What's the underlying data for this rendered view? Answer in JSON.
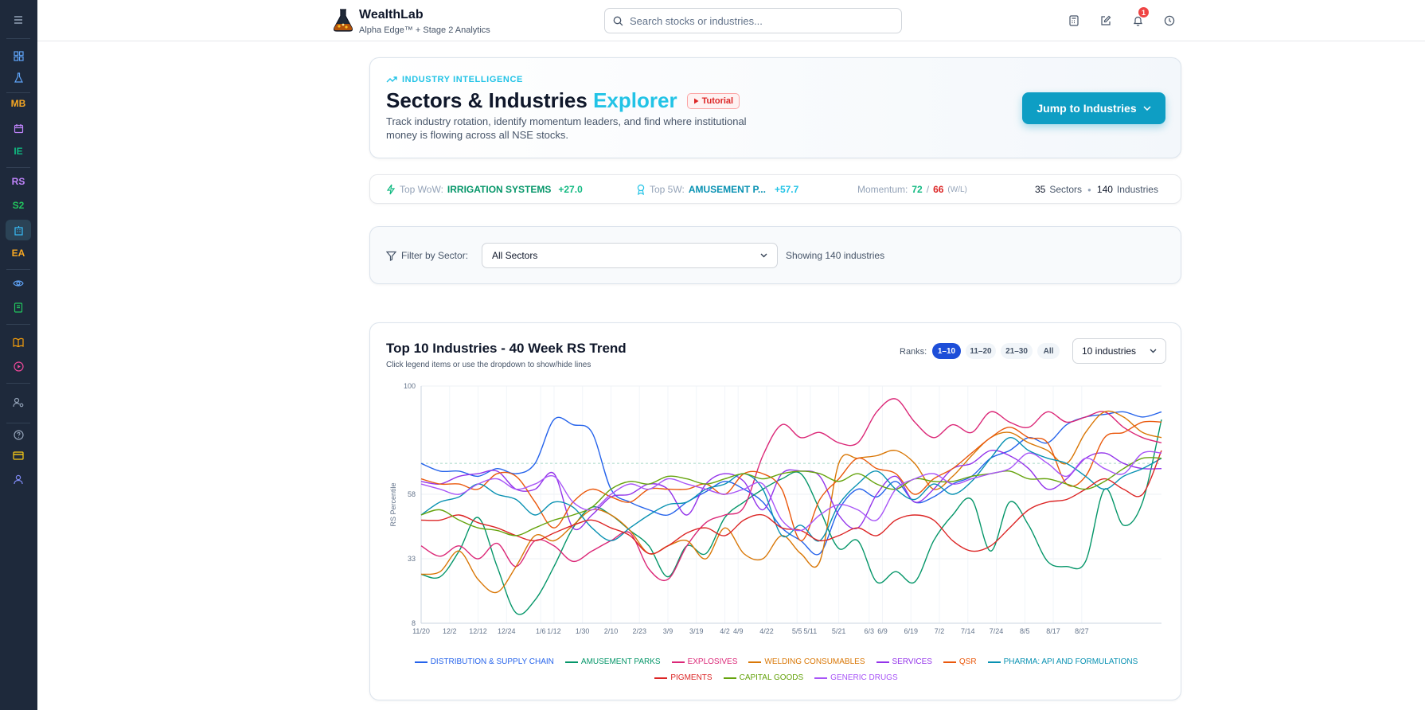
{
  "app": {
    "name": "WealthLab",
    "tagline": "Alpha Edge™ + Stage 2 Analytics"
  },
  "search": {
    "placeholder": "Search stocks or industries..."
  },
  "notifications": {
    "count": "1"
  },
  "sidebar": {
    "items": [
      {
        "name": "menu-icon",
        "label": ""
      },
      {
        "name": "dashboard-icon",
        "label": ""
      },
      {
        "name": "flask-icon",
        "label": ""
      },
      {
        "name": "MB",
        "label": "MB",
        "color": "#f5a623"
      },
      {
        "name": "calendar-icon",
        "label": ""
      },
      {
        "name": "IE",
        "label": "IE",
        "color": "#10b981"
      },
      {
        "name": "RS",
        "label": "RS",
        "color": "#c084fc"
      },
      {
        "name": "S2",
        "label": "S2",
        "color": "#22c55e"
      },
      {
        "name": "building-icon",
        "label": ""
      },
      {
        "name": "EA",
        "label": "EA",
        "color": "#f5a623"
      },
      {
        "name": "eye-icon",
        "label": ""
      },
      {
        "name": "notebook-icon",
        "label": ""
      },
      {
        "name": "book-icon",
        "label": ""
      },
      {
        "name": "play-icon",
        "label": ""
      },
      {
        "name": "user-gear-icon",
        "label": ""
      },
      {
        "name": "help-icon",
        "label": ""
      },
      {
        "name": "card-icon",
        "label": ""
      },
      {
        "name": "user-icon",
        "label": ""
      }
    ]
  },
  "hero": {
    "kicker": "INDUSTRY INTELLIGENCE",
    "title_main": "Sectors & Industries",
    "title_accent": "Explorer",
    "tutorial": "Tutorial",
    "description": "Track industry rotation, identify momentum leaders, and find where institutional money is flowing across all NSE stocks.",
    "jump_button": "Jump to Industries"
  },
  "stats": {
    "top_wow_label": "Top WoW:",
    "top_wow_name": "IRRIGATION SYSTEMS",
    "top_wow_value": "+27.0",
    "top_5w_label": "Top 5W:",
    "top_5w_name": "AMUSEMENT P...",
    "top_5w_value": "+57.7",
    "momentum_label": "Momentum:",
    "momentum_w": "72",
    "momentum_sep": "/",
    "momentum_l": "66",
    "momentum_note": "(W/L)",
    "sectors_count": "35",
    "sectors_label": "Sectors",
    "industries_count": "140",
    "industries_label": "Industries"
  },
  "filter": {
    "label": "Filter by Sector:",
    "selected": "All Sectors",
    "showing": "Showing 140 industries"
  },
  "chart_card": {
    "title": "Top 10 Industries - 40 Week RS Trend",
    "subtitle": "Click legend items or use the dropdown to show/hide lines",
    "ranks_label": "Ranks:",
    "ranks": [
      "1–10",
      "11–20",
      "21–30",
      "All"
    ],
    "active_rank": 0,
    "industries_select": "10 industries"
  },
  "chart_data": {
    "type": "line",
    "ylabel": "RS Percentile",
    "xlabel": "",
    "ylim": [
      8,
      100
    ],
    "yticks": [
      "100",
      "58",
      "33",
      "8"
    ],
    "reference_line": 70,
    "x_ticks": [
      "11/20",
      "12/2",
      "12/12",
      "12/24",
      "1/6",
      "1/12",
      "1/30",
      "2/10",
      "2/23",
      "3/9",
      "3/19",
      "4/2",
      "4/9",
      "4/22",
      "5/5",
      "5/11",
      "5/21",
      "6/3",
      "6/9",
      "6/19",
      "7/2",
      "7/14",
      "7/24",
      "8/5",
      "8/17",
      "8/27"
    ],
    "x_tick_pos": [
      0,
      1.5,
      3,
      4.5,
      6.3,
      7,
      8.5,
      10,
      11.5,
      13,
      14.5,
      16,
      16.7,
      18.2,
      19.8,
      20.5,
      22,
      23.6,
      24.3,
      25.8,
      27.3,
      28.8,
      30.3,
      31.8,
      33.3,
      34.8
    ],
    "series": [
      {
        "name": "DISTRIBUTION & SUPPLY CHAIN",
        "color": "#2563eb",
        "values": [
          70,
          67,
          67,
          65,
          68,
          66,
          70,
          87,
          85,
          82,
          60,
          55,
          52,
          50,
          55,
          59,
          63,
          60,
          55,
          45,
          40,
          35,
          52,
          60,
          57,
          63,
          55,
          57,
          62,
          65,
          72,
          75,
          80,
          78,
          85,
          88,
          89,
          90,
          88,
          90
        ]
      },
      {
        "name": "AMUSEMENT PARKS",
        "color": "#059669",
        "values": [
          27,
          26,
          36,
          49,
          30,
          12,
          17,
          30,
          45,
          53,
          50,
          44,
          38,
          26,
          38,
          35,
          49,
          55,
          60,
          64,
          66,
          52,
          37,
          40,
          24,
          28,
          24,
          40,
          50,
          56,
          36,
          55,
          46,
          32,
          30,
          32,
          60,
          46,
          55,
          87
        ]
      },
      {
        "name": "EXPLOSIVES",
        "color": "#db2777",
        "values": [
          38,
          34,
          38,
          33,
          39,
          30,
          40,
          38,
          32,
          36,
          40,
          43,
          29,
          25,
          38,
          47,
          50,
          53,
          73,
          85,
          80,
          82,
          78,
          78,
          90,
          95,
          86,
          80,
          85,
          82,
          90,
          86,
          84,
          90,
          86,
          88,
          90,
          84,
          80,
          78
        ]
      },
      {
        "name": "WELDING CONSUMABLES",
        "color": "#d97706",
        "values": [
          27,
          28,
          36,
          25,
          20,
          30,
          42,
          40,
          46,
          52,
          50,
          44,
          35,
          38,
          40,
          33,
          45,
          35,
          33,
          42,
          35,
          32,
          70,
          72,
          73,
          75,
          70,
          60,
          65,
          73,
          80,
          82,
          78,
          75,
          70,
          82,
          90,
          88,
          82,
          80
        ]
      },
      {
        "name": "SERVICES",
        "color": "#9333ea",
        "values": [
          63,
          62,
          65,
          66,
          67,
          60,
          60,
          66,
          45,
          50,
          57,
          58,
          62,
          60,
          50,
          62,
          66,
          63,
          52,
          66,
          67,
          65,
          50,
          45,
          58,
          65,
          55,
          60,
          68,
          70,
          75,
          73,
          68,
          60,
          64,
          72,
          74,
          70,
          68,
          68
        ]
      },
      {
        "name": "QSR",
        "color": "#ea580c",
        "values": [
          64,
          62,
          62,
          60,
          66,
          65,
          55,
          45,
          55,
          60,
          57,
          55,
          60,
          60,
          60,
          62,
          58,
          66,
          66,
          60,
          40,
          56,
          64,
          72,
          68,
          66,
          58,
          64,
          68,
          74,
          80,
          84,
          80,
          78,
          62,
          65,
          80,
          82,
          86,
          86
        ]
      },
      {
        "name": "PHARMA: API AND FORMULATIONS",
        "color": "#0891b2",
        "values": [
          50,
          55,
          57,
          62,
          58,
          56,
          50,
          55,
          53,
          45,
          40,
          45,
          50,
          54,
          55,
          60,
          62,
          66,
          60,
          42,
          46,
          40,
          54,
          62,
          67,
          60,
          56,
          62,
          58,
          63,
          72,
          80,
          75,
          72,
          70,
          65,
          60,
          65,
          68,
          72
        ]
      },
      {
        "name": "PIGMENTS",
        "color": "#dc2626",
        "values": [
          48,
          48,
          50,
          47,
          45,
          42,
          40,
          43,
          46,
          48,
          45,
          42,
          35,
          38,
          43,
          45,
          42,
          48,
          50,
          45,
          44,
          40,
          42,
          45,
          42,
          48,
          50,
          48,
          40,
          36,
          38,
          45,
          52,
          55,
          56,
          60,
          64,
          60,
          58,
          75
        ]
      },
      {
        "name": "CAPITAL GOODS",
        "color": "#65a30d",
        "values": [
          50,
          52,
          48,
          45,
          44,
          42,
          45,
          48,
          50,
          53,
          60,
          63,
          62,
          65,
          64,
          62,
          64,
          66,
          64,
          66,
          67,
          66,
          63,
          66,
          62,
          60,
          64,
          63,
          63,
          65,
          66,
          67,
          64,
          64,
          62,
          60,
          63,
          68,
          72,
          72
        ]
      },
      {
        "name": "GENERIC DRUGS",
        "color": "#a855f7",
        "values": [
          62,
          60,
          58,
          62,
          64,
          60,
          62,
          65,
          55,
          52,
          58,
          62,
          60,
          64,
          62,
          60,
          58,
          60,
          62,
          48,
          44,
          50,
          54,
          52,
          48,
          60,
          64,
          66,
          62,
          64,
          66,
          68,
          74,
          70,
          65,
          72,
          68,
          66,
          74,
          74
        ]
      }
    ]
  }
}
